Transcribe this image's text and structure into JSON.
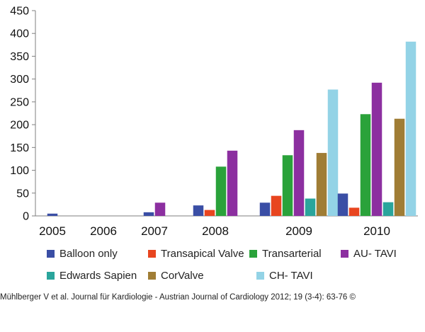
{
  "chart_data": {
    "type": "bar",
    "title": "",
    "xlabel": "",
    "ylabel": "",
    "categories": [
      "2005",
      "2006",
      "2007",
      "2008",
      "2009",
      "2010"
    ],
    "ylim": [
      0,
      450
    ],
    "yticks": [
      0,
      50,
      100,
      150,
      200,
      250,
      300,
      350,
      400,
      450
    ],
    "grid": false,
    "series": [
      {
        "name": "Balloon only",
        "color": "#3a4ea5",
        "values": [
          5,
          0,
          8,
          23,
          29,
          49
        ]
      },
      {
        "name": "Transapical Valve",
        "color": "#e8451f",
        "values": [
          0,
          0,
          0,
          13,
          44,
          18
        ]
      },
      {
        "name": "Transarterial",
        "color": "#2aa23a",
        "values": [
          0,
          0,
          0,
          108,
          133,
          223
        ]
      },
      {
        "name": "AU- TAVI",
        "color": "#8c2fa0",
        "values": [
          0,
          0,
          29,
          143,
          188,
          292
        ]
      },
      {
        "name": "Edwards Sapien",
        "color": "#2aa59c",
        "values": [
          0,
          0,
          0,
          0,
          38,
          30
        ]
      },
      {
        "name": "CorValve",
        "color": "#a07d35",
        "values": [
          0,
          0,
          0,
          0,
          138,
          213
        ]
      },
      {
        "name": "CH- TAVI",
        "color": "#93d3e6",
        "values": [
          0,
          0,
          0,
          0,
          277,
          382
        ]
      }
    ],
    "legend_position": "bottom"
  },
  "caption": "Mühlberger V et al. Journal für Kardiologie - Austrian Journal of Cardiology 2012; 19 (3-4): 63-76 ©"
}
